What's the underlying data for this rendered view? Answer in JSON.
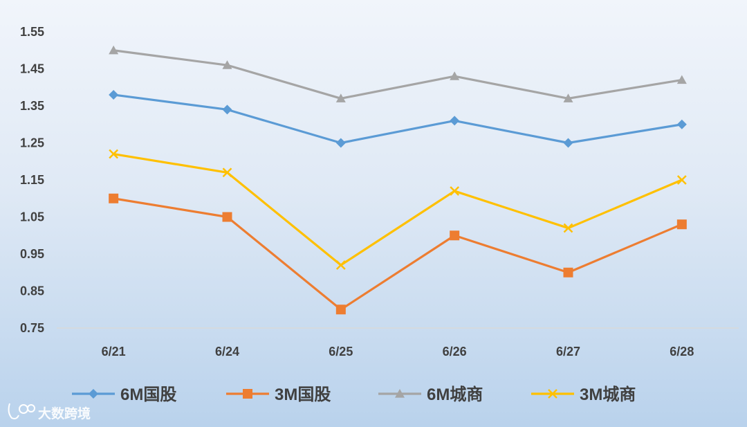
{
  "chart_data": {
    "type": "line",
    "title": "",
    "xlabel": "",
    "ylabel": "",
    "categories": [
      "6/21",
      "6/24",
      "6/25",
      "6/26",
      "6/27",
      "6/28"
    ],
    "ylim": [
      0.75,
      1.55
    ],
    "yticks": [
      "0.75",
      "0.85",
      "0.95",
      "1.05",
      "1.15",
      "1.25",
      "1.35",
      "1.45",
      "1.55"
    ],
    "grid": false,
    "legend_position": "bottom",
    "series": [
      {
        "name": "6M国股",
        "values": [
          1.38,
          1.34,
          1.25,
          1.31,
          1.25,
          1.3
        ],
        "color": "#5b9bd5",
        "marker": "diamond"
      },
      {
        "name": "3M国股",
        "values": [
          1.1,
          1.05,
          0.8,
          1.0,
          0.9,
          1.03
        ],
        "color": "#ed7d31",
        "marker": "square"
      },
      {
        "name": "6M城商",
        "values": [
          1.5,
          1.46,
          1.37,
          1.43,
          1.37,
          1.42
        ],
        "color": "#a5a5a5",
        "marker": "triangle"
      },
      {
        "name": "3M城商",
        "values": [
          1.22,
          1.17,
          0.92,
          1.12,
          1.02,
          1.15
        ],
        "color": "#ffc000",
        "marker": "x"
      }
    ]
  },
  "watermark": {
    "text": "大数跨境",
    "logo": "leo-logo-icon"
  }
}
